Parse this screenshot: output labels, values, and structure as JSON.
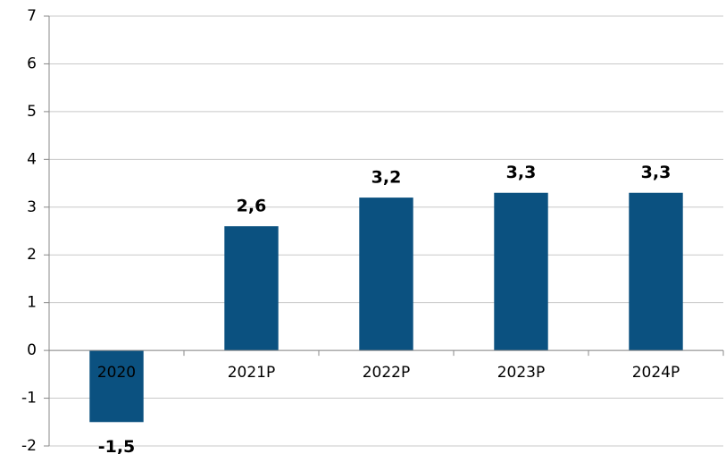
{
  "chart_data": {
    "type": "bar",
    "categories": [
      "2020",
      "2021P",
      "2022P",
      "2023P",
      "2024P"
    ],
    "values": [
      -1.5,
      2.6,
      3.2,
      3.3,
      3.3
    ],
    "value_labels": [
      "-1,5",
      "2,6",
      "3,2",
      "3,3",
      "3,3"
    ],
    "color": "#0b5180",
    "ylim": [
      -2,
      7
    ],
    "yticks": [
      -2,
      -1,
      0,
      1,
      2,
      3,
      4,
      5,
      6,
      7
    ],
    "grid": true
  }
}
